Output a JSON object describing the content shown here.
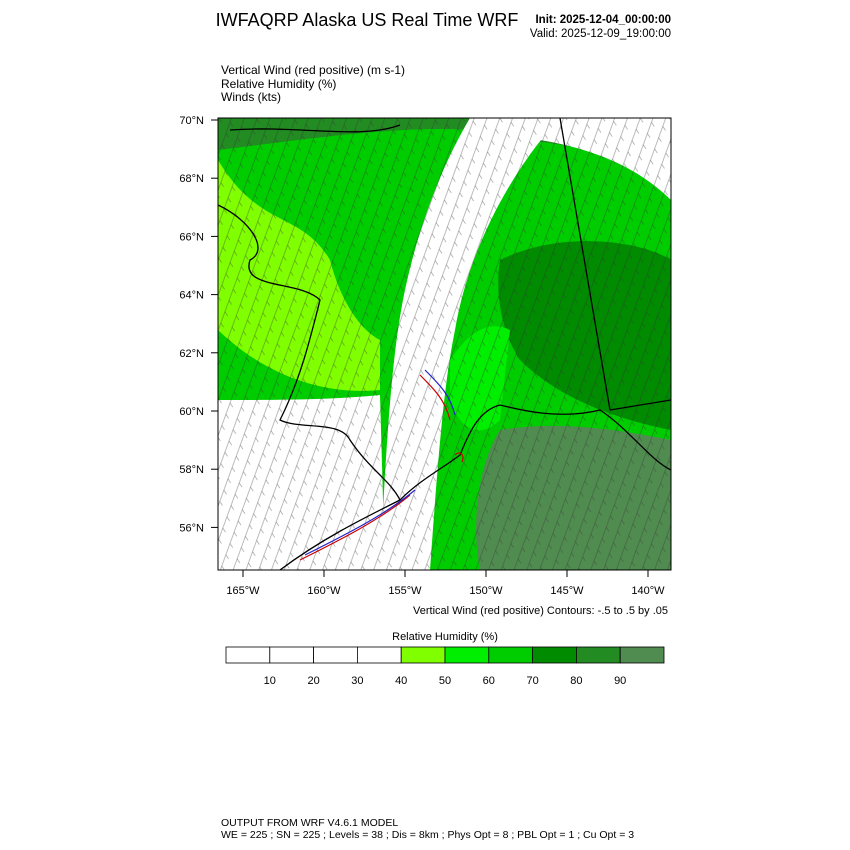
{
  "header": {
    "title": "IWFAQRP Alaska US Real Time WRF",
    "init": "Init: 2025-12-04_00:00:00",
    "valid": "Valid: 2025-12-09_19:00:00"
  },
  "fields": [
    "Vertical Wind (red positive)   (m s-1)",
    "Relative Humidity   (%)",
    "Winds   (kts)"
  ],
  "map": {
    "lat_labels": [
      "70°N",
      "68°N",
      "66°N",
      "64°N",
      "62°N",
      "60°N",
      "58°N",
      "56°N"
    ],
    "lon_labels": [
      "165°W",
      "160°W",
      "155°W",
      "150°W",
      "145°W",
      "140°W"
    ],
    "contour_note": "Vertical Wind (red positive) Contours: -.5 to .5 by .05"
  },
  "colorbar": {
    "title": "Relative Humidity  (%)",
    "ticks": [
      10,
      20,
      30,
      40,
      50,
      60,
      70,
      80,
      90
    ],
    "colors": [
      "#ffffff",
      "#ffffff",
      "#ffffff",
      "#ffffff",
      "#7fff00",
      "#00ee00",
      "#00cd00",
      "#008b00",
      "#228b22",
      "#508c50"
    ]
  },
  "footer": {
    "line1": "OUTPUT FROM WRF V4.6.1 MODEL",
    "line2": "WE = 225 ; SN = 225 ; Levels = 38 ; Dis = 8km ; Phys Opt = 8 ; PBL Opt = 1 ; Cu Opt = 3"
  }
}
